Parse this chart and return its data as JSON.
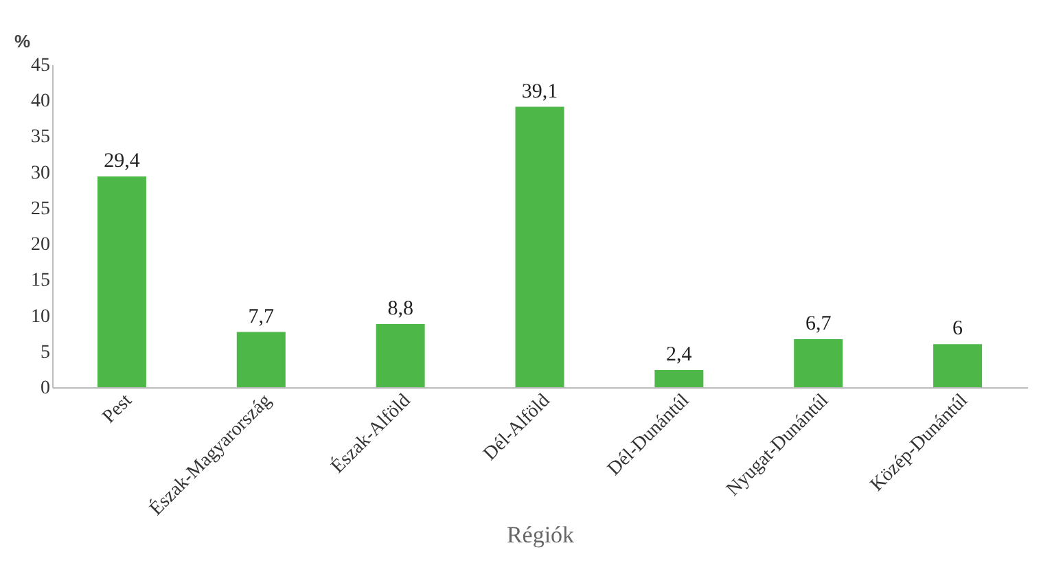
{
  "chart_data": {
    "type": "bar",
    "ylabel": "%",
    "xlabel": "Régiók",
    "categories": [
      "Pest",
      "Észak-Magyarország",
      "Észak-Alföld",
      "Dél-Alföld",
      "Dél-Dunántúl",
      "Nyugat-Dunántúl",
      "Közép-Dunántúl"
    ],
    "values": [
      29.4,
      7.7,
      8.8,
      39.1,
      2.4,
      6.7,
      6
    ],
    "value_labels": [
      "29,4",
      "7,7",
      "8,8",
      "39,1",
      "2,4",
      "6,7",
      "6"
    ],
    "color": "#4db848",
    "ylim": [
      0,
      45
    ],
    "yticks": [
      0,
      5,
      10,
      15,
      20,
      25,
      30,
      35,
      40,
      45
    ],
    "grid": false
  }
}
